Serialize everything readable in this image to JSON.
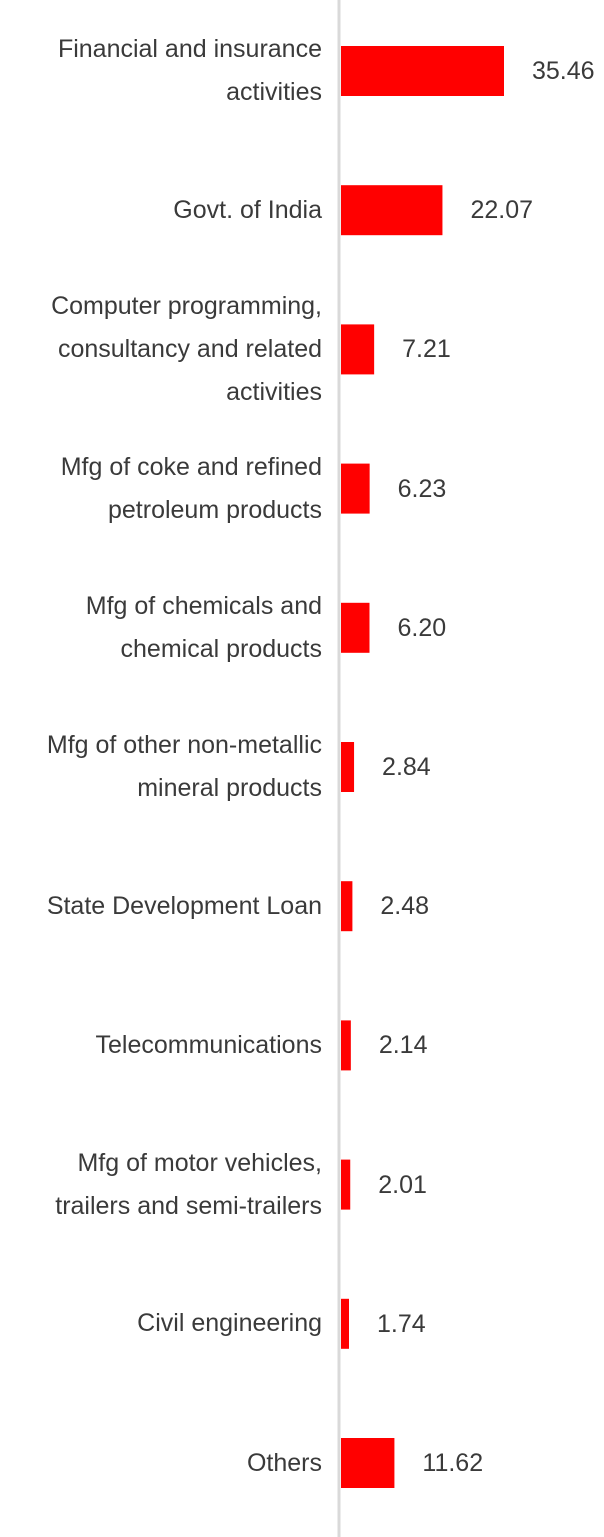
{
  "chart_data": {
    "type": "bar",
    "orientation": "horizontal",
    "categories": [
      [
        "Financial and insurance",
        "activities"
      ],
      [
        "Govt. of India"
      ],
      [
        "Computer programming,",
        "consultancy and related",
        "activities"
      ],
      [
        "Mfg of coke and refined",
        "petroleum products"
      ],
      [
        "Mfg of chemicals and",
        "chemical products"
      ],
      [
        "Mfg of other non-metallic",
        "mineral products"
      ],
      [
        "State Development Loan"
      ],
      [
        "Telecommunications"
      ],
      [
        "Mfg of motor vehicles,",
        "trailers and semi-trailers"
      ],
      [
        "Civil engineering"
      ],
      [
        "Others"
      ]
    ],
    "values": [
      35.46,
      22.07,
      7.21,
      6.23,
      6.2,
      2.84,
      2.48,
      2.14,
      2.01,
      1.74,
      11.62
    ],
    "value_labels": [
      "35.46",
      "22.07",
      "7.21",
      "6.23",
      "6.20",
      "2.84",
      "2.48",
      "2.14",
      "2.01",
      "1.74",
      "11.62"
    ],
    "bar_color": "#ff0000",
    "axis_color": "#d9d9d9",
    "grid": false,
    "legend": "none"
  }
}
